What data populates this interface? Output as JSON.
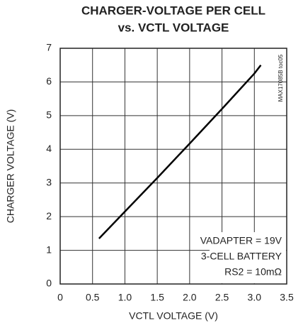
{
  "chart_data": {
    "type": "line",
    "title": [
      "CHARGER-VOLTAGE PER CELL",
      "vs. VCTL VOLTAGE"
    ],
    "xlabel": "VCTL VOLTAGE (V)",
    "ylabel": "CHARGER VOLTAGE (V)",
    "x": [
      0.6,
      1.0,
      1.5,
      2.0,
      2.5,
      3.0,
      3.1
    ],
    "values": [
      1.35,
      2.15,
      3.15,
      4.17,
      5.2,
      6.25,
      6.5
    ],
    "color": "#000000",
    "xlim": [
      0,
      3.5
    ],
    "xticks": [
      0,
      0.5,
      {
        "value": 1,
        "label": "1.0"
      },
      1.5,
      {
        "value": 2,
        "label": "2.0"
      },
      2.5,
      {
        "value": 3,
        "label": "3.0"
      },
      3.5
    ],
    "ylim": [
      0,
      7
    ],
    "yticks": [
      0,
      1,
      2,
      3,
      4,
      5,
      6,
      7
    ],
    "grid": true,
    "annotations": [
      "VADAPTER = 19V",
      "3-CELL BATTERY",
      "RS2 = 10mΩ"
    ],
    "side_note": "MAX17085B toc05"
  }
}
